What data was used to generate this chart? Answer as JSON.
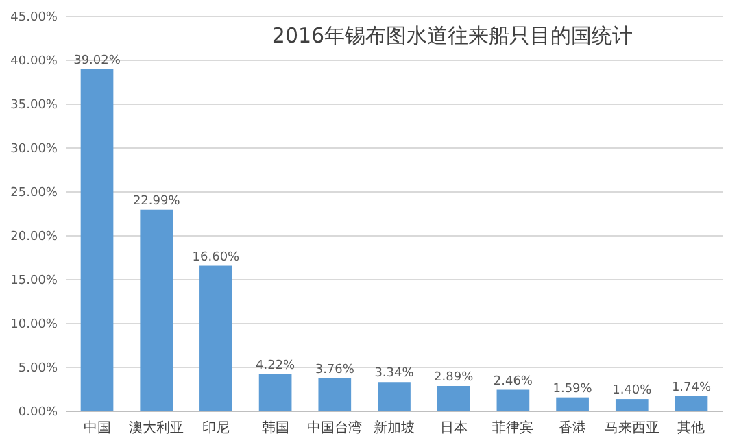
{
  "chart_data": {
    "type": "bar",
    "title": "2016年锡布图水道往来船只目的国统计",
    "categories": [
      "中国",
      "澳大利亚",
      "印尼",
      "韩国",
      "中国台湾",
      "新加坡",
      "日本",
      "菲律宾",
      "香港",
      "马来西亚",
      "其他"
    ],
    "values": [
      39.02,
      22.99,
      16.6,
      4.22,
      3.76,
      3.34,
      2.89,
      2.46,
      1.59,
      1.4,
      1.74
    ],
    "value_labels": [
      "39.02%",
      "22.99%",
      "16.60%",
      "4.22%",
      "3.76%",
      "3.34%",
      "2.89%",
      "2.46%",
      "1.59%",
      "1.40%",
      "1.74%"
    ],
    "color": "#5b9bd5",
    "ylim": [
      0,
      45
    ],
    "yticks": [
      {
        "value": 0,
        "label": "0.00%"
      },
      {
        "value": 5,
        "label": "5.00%"
      },
      {
        "value": 10,
        "label": "10.00%"
      },
      {
        "value": 15,
        "label": "15.00%"
      },
      {
        "value": 20,
        "label": "20.00%"
      },
      {
        "value": 25,
        "label": "25.00%"
      },
      {
        "value": 30,
        "label": "30.00%"
      },
      {
        "value": 35,
        "label": "35.00%"
      },
      {
        "value": 40,
        "label": "40.00%"
      },
      {
        "value": 45,
        "label": "45.00%"
      }
    ],
    "grid": "y"
  }
}
